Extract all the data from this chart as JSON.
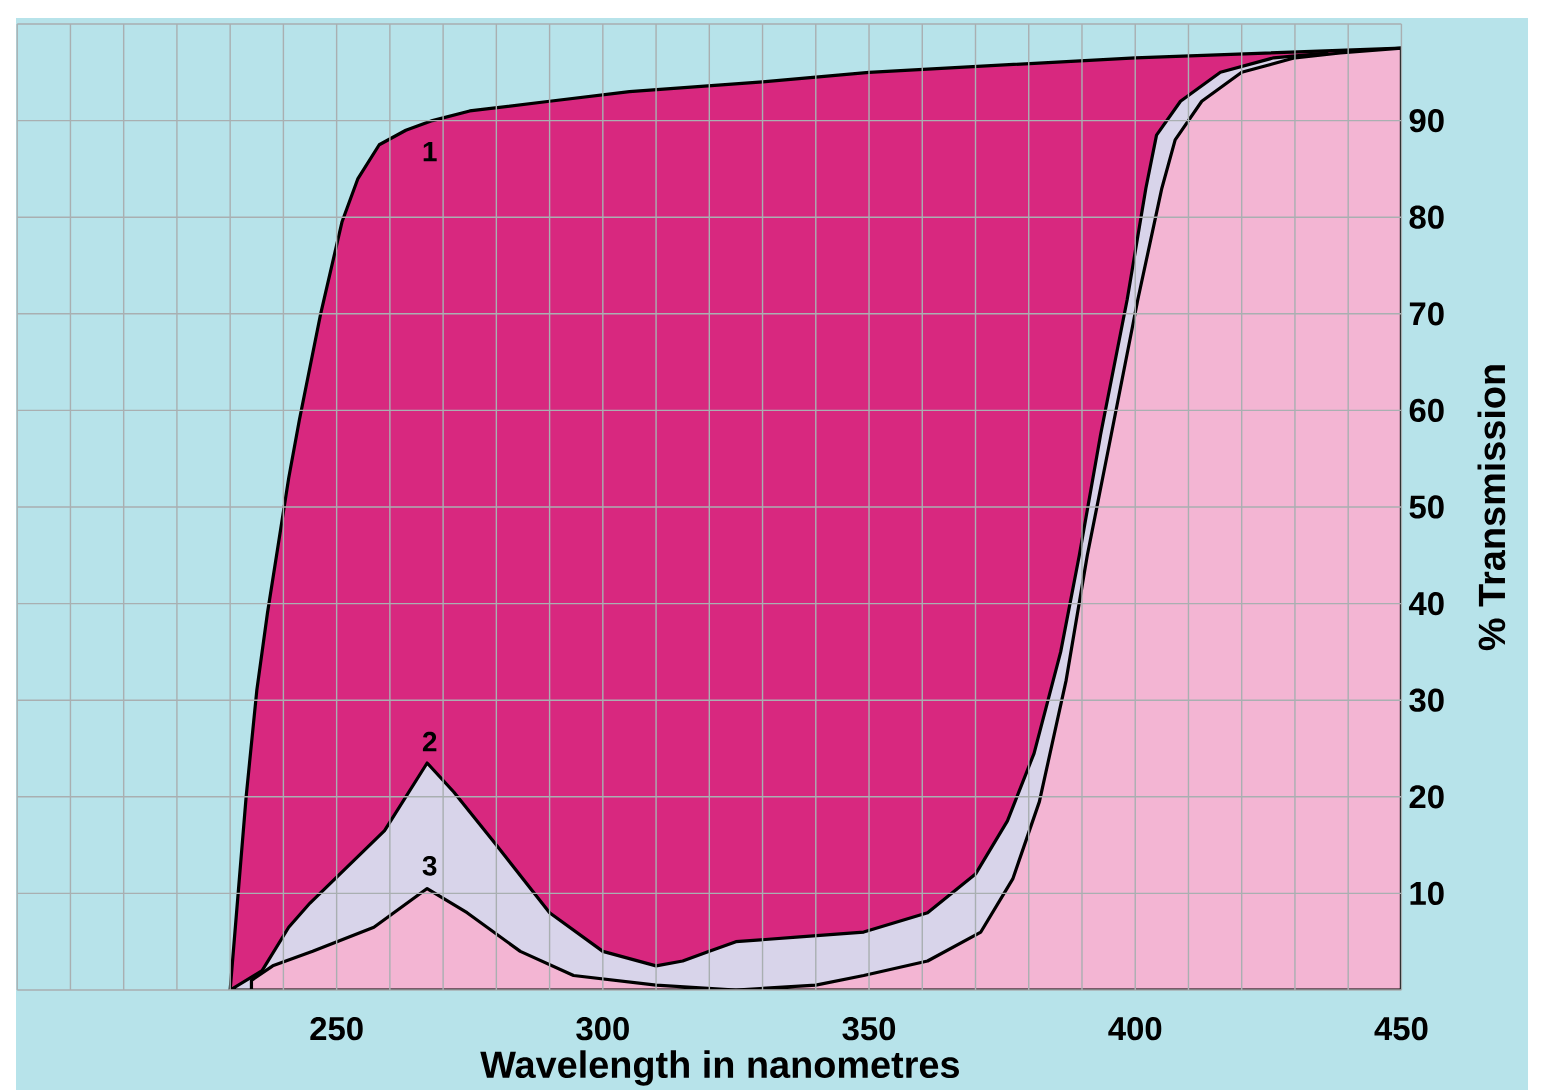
{
  "chart_data": {
    "type": "area",
    "xlabel": "Wavelength in nanometres",
    "ylabel": "% Transmission",
    "xlim": [
      190,
      450
    ],
    "ylim": [
      0,
      100
    ],
    "xticks": [
      {
        "value": 190,
        "label": null
      },
      {
        "value": 200,
        "label": null
      },
      {
        "value": 210,
        "label": null
      },
      {
        "value": 220,
        "label": null
      },
      {
        "value": 230,
        "label": null
      },
      {
        "value": 240,
        "label": null
      },
      250,
      {
        "value": 260,
        "label": null
      },
      {
        "value": 270,
        "label": null
      },
      {
        "value": 280,
        "label": null
      },
      {
        "value": 290,
        "label": null
      },
      300,
      {
        "value": 310,
        "label": null
      },
      {
        "value": 320,
        "label": null
      },
      {
        "value": 330,
        "label": null
      },
      {
        "value": 340,
        "label": null
      },
      350,
      {
        "value": 360,
        "label": null
      },
      {
        "value": 370,
        "label": null
      },
      {
        "value": 380,
        "label": null
      },
      {
        "value": 390,
        "label": null
      },
      400,
      {
        "value": 410,
        "label": null
      },
      {
        "value": 420,
        "label": null
      },
      {
        "value": 430,
        "label": null
      },
      {
        "value": 440,
        "label": null
      },
      450
    ],
    "yticks": [
      {
        "value": 0,
        "label": null
      },
      10,
      20,
      30,
      40,
      50,
      60,
      70,
      80,
      90,
      {
        "value": 100,
        "label": null
      }
    ],
    "grid": true,
    "series": [
      {
        "name": "1",
        "color": "#d8287f",
        "x": [
          230,
          233,
          235,
          237,
          239,
          241,
          243,
          247,
          251,
          254,
          258,
          263,
          268,
          275,
          290,
          305,
          330,
          350,
          400,
          450
        ],
        "values": [
          0,
          20,
          31,
          39,
          46,
          53,
          59,
          70,
          79.5,
          84,
          87.5,
          89,
          90,
          91,
          92,
          93,
          94,
          95,
          96.5,
          97.5
        ]
      },
      {
        "name": "2",
        "color": "#d8d4ea",
        "x": [
          230,
          236,
          241,
          245,
          259,
          267,
          272,
          280,
          290,
          300,
          310,
          315,
          320,
          325,
          337,
          349,
          361,
          370,
          376,
          381,
          386,
          389.5,
          393.5,
          398.5,
          402,
          404,
          408.5,
          416,
          426,
          436
        ],
        "values": [
          0,
          2,
          6.5,
          9,
          16.5,
          23.5,
          20.5,
          15,
          8,
          4,
          2.5,
          3,
          4,
          5,
          5.5,
          6,
          8,
          12,
          17.5,
          24.5,
          35,
          45,
          57.5,
          71.5,
          83,
          88.5,
          92,
          95,
          96.5,
          97
        ]
      },
      {
        "name": "3",
        "color": "#f3b5d3",
        "x": [
          234,
          238,
          245.5,
          257,
          267,
          274.5,
          284.5,
          294.5,
          310,
          325,
          340,
          349,
          361,
          371,
          377,
          382,
          387,
          391,
          395.5,
          400.5,
          405,
          407.5,
          412.5,
          420,
          430,
          438.5,
          450
        ],
        "values": [
          1,
          2.5,
          4,
          6.5,
          10.5,
          8,
          4,
          1.5,
          0.5,
          0,
          0.5,
          1.5,
          3,
          6,
          11.5,
          19.5,
          32,
          45,
          57.5,
          71.5,
          83,
          88,
          92,
          95,
          96.5,
          97,
          97.5
        ]
      }
    ]
  }
}
